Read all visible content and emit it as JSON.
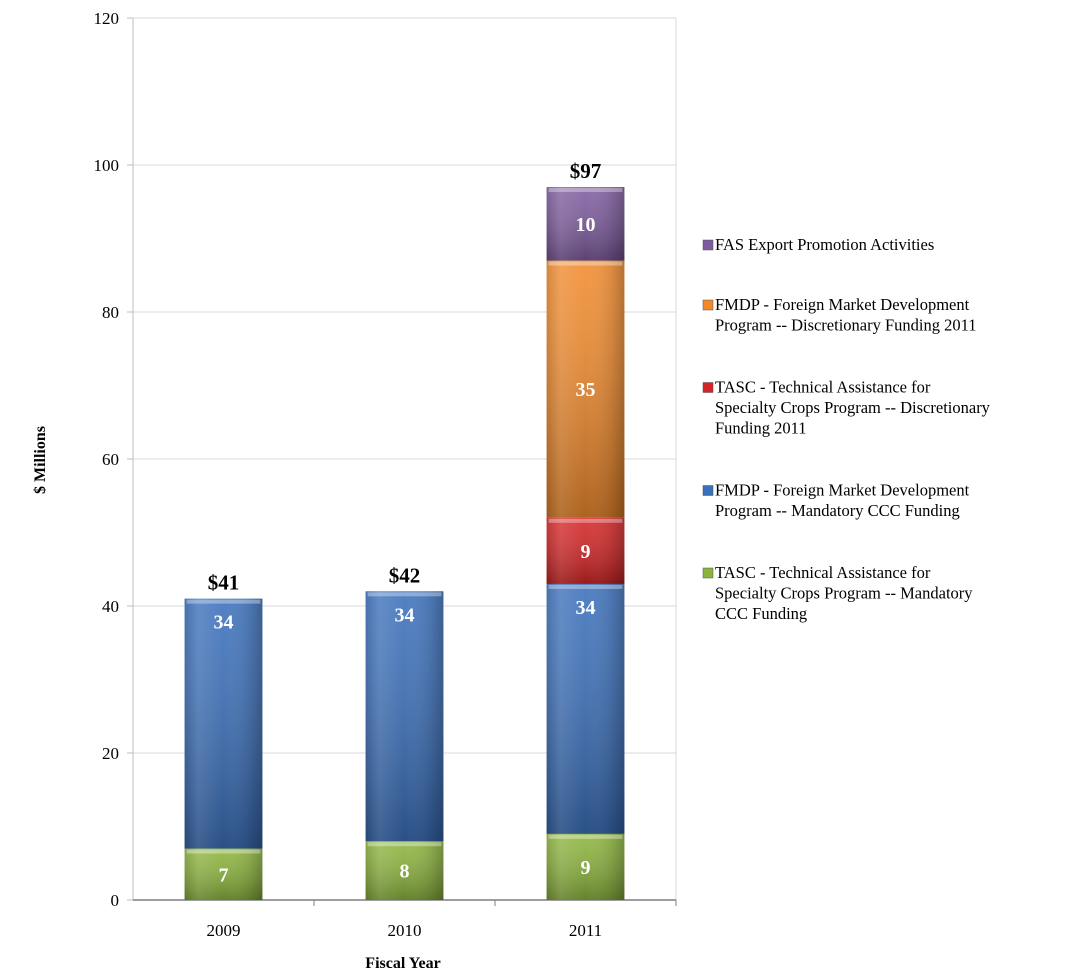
{
  "chart_data": {
    "type": "bar",
    "stacked": true,
    "categories": [
      "2009",
      "2010",
      "2011"
    ],
    "xlabel": "Fiscal Year",
    "ylabel": "$ Millions",
    "ylim": [
      0,
      120
    ],
    "yticks": [
      0,
      20,
      40,
      60,
      80,
      100,
      120
    ],
    "grid": true,
    "legend_position": "right",
    "series": [
      {
        "name": "TASC - Technical Assistance for Specialty Crops Program -- Mandatory CCC Funding",
        "legend_lines": [
          "TASC - Technical Assistance for",
          "Specialty Crops Program -- Mandatory",
          "CCC Funding"
        ],
        "values": [
          7,
          8,
          9
        ],
        "color": "#8cb43c"
      },
      {
        "name": "FMDP - Foreign Market Development Program -- Mandatory CCC Funding",
        "legend_lines": [
          "FMDP - Foreign Market Development",
          "Program -- Mandatory CCC Funding"
        ],
        "values": [
          34,
          34,
          34
        ],
        "color": "#3a6fba"
      },
      {
        "name": "TASC - Technical Assistance for Specialty Crops Program -- Discretionary Funding 2011",
        "legend_lines": [
          "TASC - Technical Assistance for",
          "Specialty Crops Program -- Discretionary",
          "Funding 2011"
        ],
        "values": [
          0,
          0,
          9
        ],
        "color": "#d42424"
      },
      {
        "name": "FMDP - Foreign Market Development Program -- Discretionary Funding 2011",
        "legend_lines": [
          "FMDP - Foreign Market Development",
          "Program -- Discretionary Funding 2011"
        ],
        "values": [
          0,
          0,
          35
        ],
        "color": "#f08a2c"
      },
      {
        "name": "FAS Export Promotion Activities",
        "legend_lines": [
          "FAS Export Promotion Activities"
        ],
        "values": [
          0,
          0,
          10
        ],
        "color": "#7d5b9e"
      }
    ],
    "segment_labels": [
      [
        "7",
        "34",
        "",
        "",
        ""
      ],
      [
        "8",
        "34",
        "",
        "",
        ""
      ],
      [
        "9",
        "34",
        "9",
        "35",
        "10"
      ]
    ],
    "totals": [
      41,
      42,
      97
    ],
    "total_labels": [
      "$41",
      "$42",
      "$97"
    ]
  }
}
